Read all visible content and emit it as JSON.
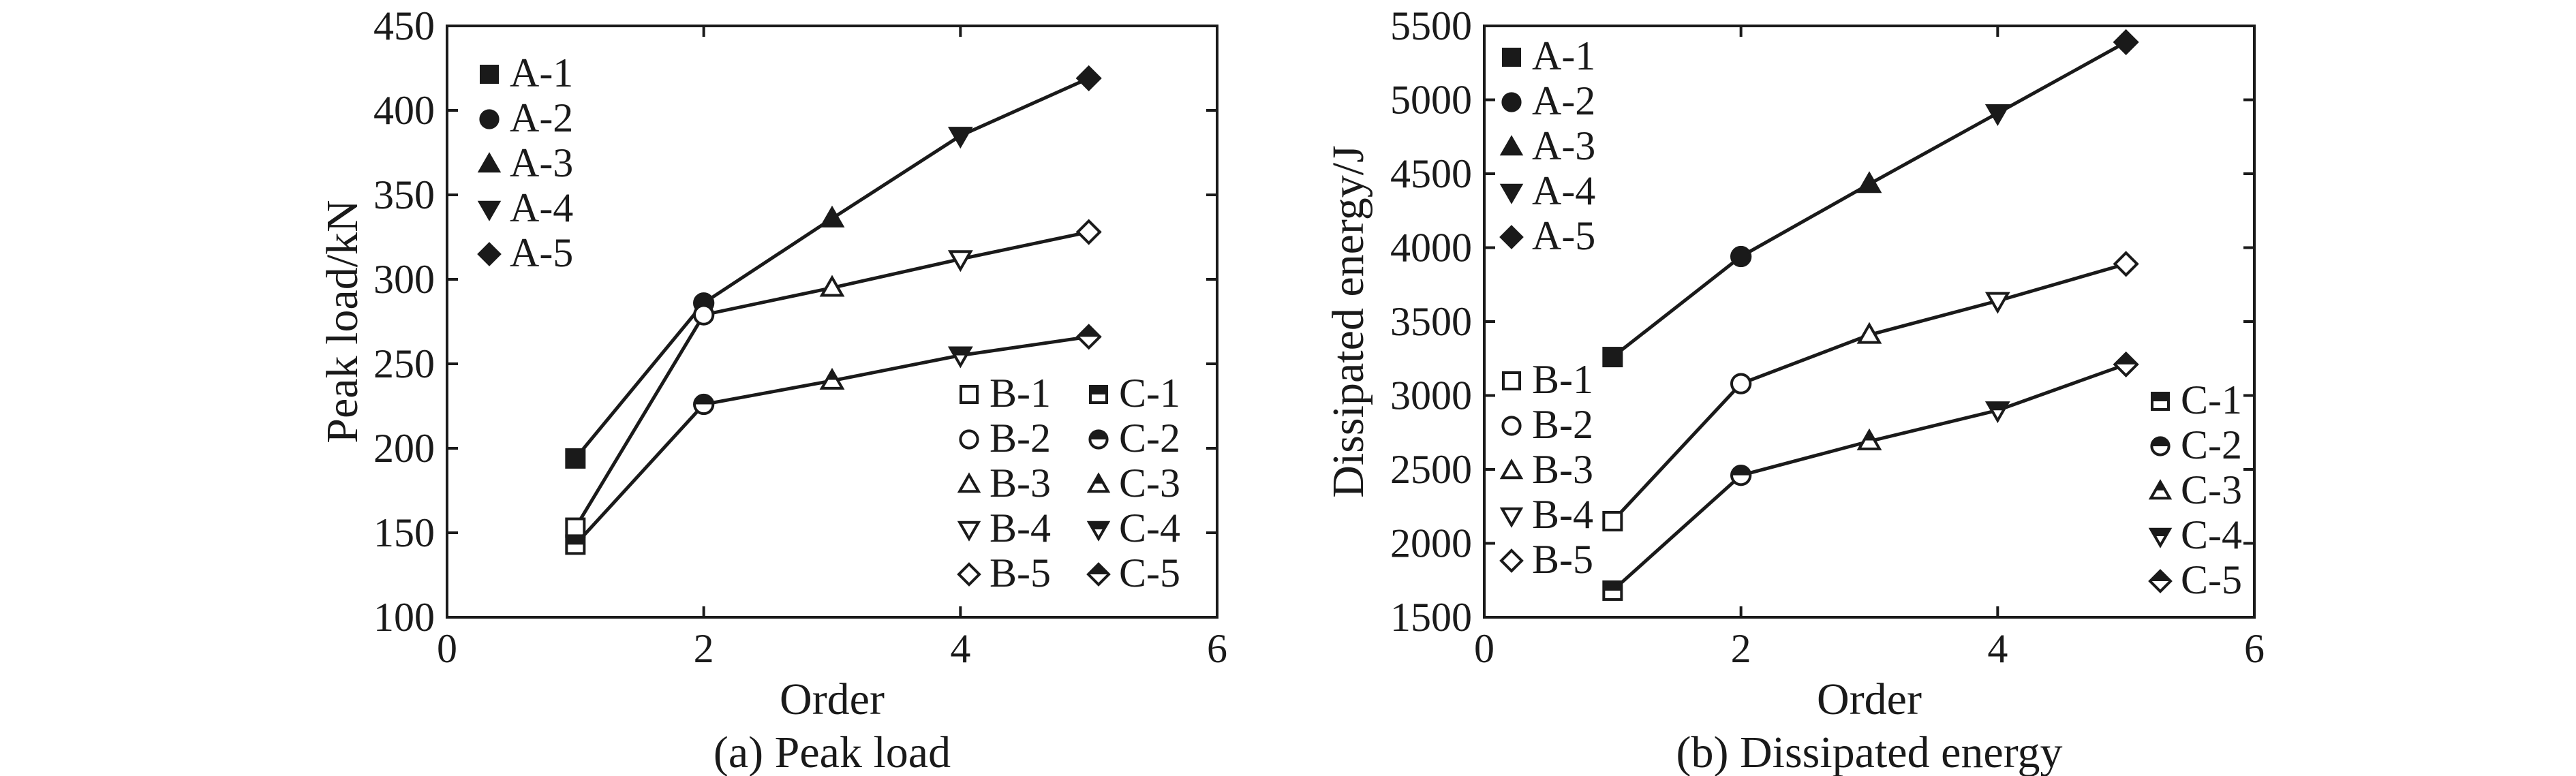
{
  "chart_data": [
    {
      "type": "line",
      "caption": "(a) Peak load",
      "xlabel": "Order",
      "ylabel": "Peak load/kN",
      "xlim": [
        0,
        6
      ],
      "ylim": [
        100,
        450
      ],
      "xticks": [
        "0",
        "2",
        "4",
        "6"
      ],
      "yticks": [
        "100",
        "150",
        "200",
        "250",
        "300",
        "350",
        "400",
        "450"
      ],
      "grid": false,
      "series": [
        {
          "name": "A",
          "marker": "mixed",
          "fill": "filled",
          "x": [
            1,
            2,
            3,
            4,
            5
          ],
          "values": [
            194,
            286,
            336,
            385,
            419
          ]
        },
        {
          "name": "B",
          "marker": "mixed",
          "fill": "open",
          "x": [
            1,
            2,
            3,
            4,
            5
          ],
          "values": [
            153,
            279,
            295,
            312,
            328
          ]
        },
        {
          "name": "C",
          "marker": "mixed",
          "fill": "half",
          "x": [
            1,
            2,
            3,
            4,
            5
          ],
          "values": [
            143,
            226,
            240,
            255,
            266
          ]
        }
      ],
      "point_markers": [
        "square",
        "circle",
        "triangle-up",
        "triangle-down",
        "diamond"
      ],
      "legend": [
        {
          "label": "A-1",
          "marker": "square",
          "fill": "filled",
          "position": "top-left"
        },
        {
          "label": "A-2",
          "marker": "circle",
          "fill": "filled",
          "position": "top-left"
        },
        {
          "label": "A-3",
          "marker": "triangle-up",
          "fill": "filled",
          "position": "top-left"
        },
        {
          "label": "A-4",
          "marker": "triangle-down",
          "fill": "filled",
          "position": "top-left"
        },
        {
          "label": "A-5",
          "marker": "diamond",
          "fill": "filled",
          "position": "top-left"
        },
        {
          "label": "B-1",
          "marker": "square",
          "fill": "open",
          "position": "bottom-right"
        },
        {
          "label": "B-2",
          "marker": "circle",
          "fill": "open",
          "position": "bottom-right"
        },
        {
          "label": "B-3",
          "marker": "triangle-up",
          "fill": "open",
          "position": "bottom-right"
        },
        {
          "label": "B-4",
          "marker": "triangle-down",
          "fill": "open",
          "position": "bottom-right"
        },
        {
          "label": "B-5",
          "marker": "diamond",
          "fill": "open",
          "position": "bottom-right"
        },
        {
          "label": "C-1",
          "marker": "square",
          "fill": "half",
          "position": "bottom-right"
        },
        {
          "label": "C-2",
          "marker": "circle",
          "fill": "half",
          "position": "bottom-right"
        },
        {
          "label": "C-3",
          "marker": "triangle-up",
          "fill": "half",
          "position": "bottom-right"
        },
        {
          "label": "C-4",
          "marker": "triangle-down",
          "fill": "half",
          "position": "bottom-right"
        },
        {
          "label": "C-5",
          "marker": "diamond",
          "fill": "half",
          "position": "bottom-right"
        }
      ]
    },
    {
      "type": "line",
      "caption": "(b) Dissipated energy",
      "xlabel": "Order",
      "ylabel": "Dissipated energy/J",
      "xlim": [
        0,
        6
      ],
      "ylim": [
        1500,
        5500
      ],
      "xticks": [
        "0",
        "2",
        "4",
        "6"
      ],
      "yticks": [
        "1500",
        "2000",
        "2500",
        "3000",
        "3500",
        "4000",
        "4500",
        "5000",
        "5500"
      ],
      "grid": false,
      "series": [
        {
          "name": "A",
          "marker": "mixed",
          "fill": "filled",
          "x": [
            1,
            2,
            3,
            4,
            5
          ],
          "values": [
            3260,
            3940,
            4430,
            4910,
            5390
          ]
        },
        {
          "name": "B",
          "marker": "mixed",
          "fill": "open",
          "x": [
            1,
            2,
            3,
            4,
            5
          ],
          "values": [
            2150,
            3080,
            3410,
            3640,
            3890
          ]
        },
        {
          "name": "C",
          "marker": "mixed",
          "fill": "half",
          "x": [
            1,
            2,
            3,
            4,
            5
          ],
          "values": [
            1680,
            2460,
            2690,
            2900,
            3210
          ]
        }
      ],
      "point_markers": [
        "square",
        "circle",
        "triangle-up",
        "triangle-down",
        "diamond"
      ],
      "legend": [
        {
          "label": "A-1",
          "marker": "square",
          "fill": "filled",
          "position": "top-left"
        },
        {
          "label": "A-2",
          "marker": "circle",
          "fill": "filled",
          "position": "top-left"
        },
        {
          "label": "A-3",
          "marker": "triangle-up",
          "fill": "filled",
          "position": "top-left"
        },
        {
          "label": "A-4",
          "marker": "triangle-down",
          "fill": "filled",
          "position": "top-left"
        },
        {
          "label": "A-5",
          "marker": "diamond",
          "fill": "filled",
          "position": "top-left"
        },
        {
          "label": "B-1",
          "marker": "square",
          "fill": "open",
          "position": "bottom-left"
        },
        {
          "label": "B-2",
          "marker": "circle",
          "fill": "open",
          "position": "bottom-left"
        },
        {
          "label": "B-3",
          "marker": "triangle-up",
          "fill": "open",
          "position": "bottom-left"
        },
        {
          "label": "B-4",
          "marker": "triangle-down",
          "fill": "open",
          "position": "bottom-left"
        },
        {
          "label": "B-5",
          "marker": "diamond",
          "fill": "open",
          "position": "bottom-left"
        },
        {
          "label": "C-1",
          "marker": "square",
          "fill": "half",
          "position": "bottom-right"
        },
        {
          "label": "C-2",
          "marker": "circle",
          "fill": "half",
          "position": "bottom-right"
        },
        {
          "label": "C-3",
          "marker": "triangle-up",
          "fill": "half",
          "position": "bottom-right"
        },
        {
          "label": "C-4",
          "marker": "triangle-down",
          "fill": "half",
          "position": "bottom-right"
        },
        {
          "label": "C-5",
          "marker": "diamond",
          "fill": "half",
          "position": "bottom-right"
        }
      ]
    }
  ]
}
